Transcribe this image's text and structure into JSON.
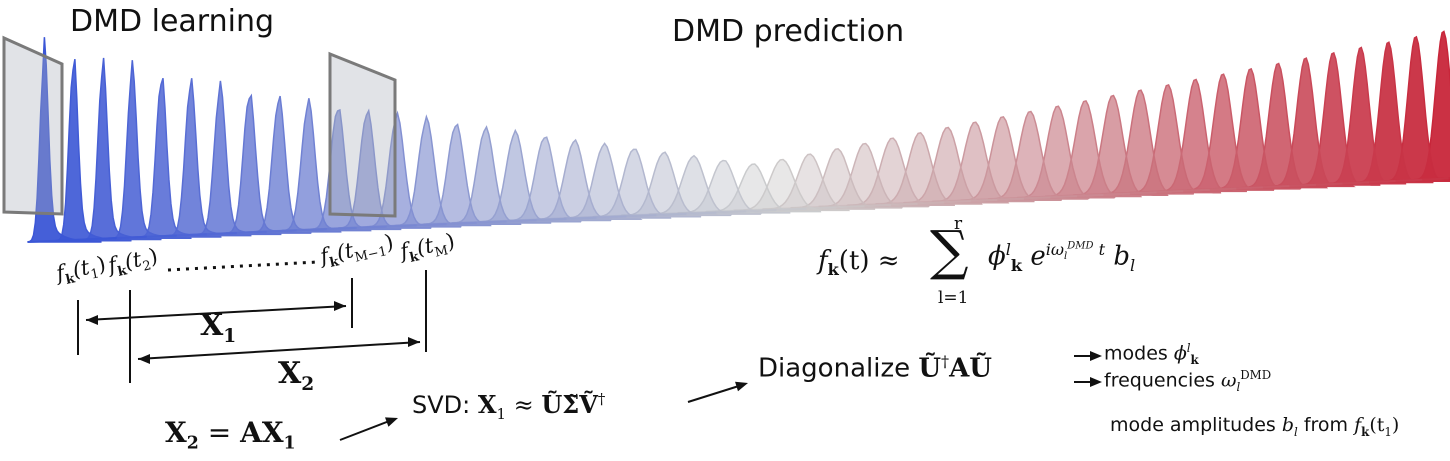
{
  "titles": {
    "learning": "DMD learning",
    "prediction": "DMD prediction"
  },
  "snapshots": {
    "t1": {
      "f": "f",
      "k": "k",
      "open": "(t",
      "sub": "1",
      "close": ")"
    },
    "t2": {
      "f": "f",
      "k": "k",
      "open": "(t",
      "sub": "2",
      "close": ")"
    },
    "tM1": {
      "f": "f",
      "k": "k",
      "open": "(t",
      "sub": "M−1",
      "close": ")"
    },
    "tM": {
      "f": "f",
      "k": "k",
      "open": "(t",
      "sub": "M",
      "close": ")"
    }
  },
  "matrices": {
    "x1_label": "X",
    "x1_sub": "1",
    "x2_label": "X",
    "x2_sub": "2"
  },
  "equations": {
    "relation_lhs": "X",
    "relation_lhs_sub": "2",
    "relation_eq": " = ",
    "relation_rhs": "AX",
    "relation_rhs_sub": "1",
    "svd_prefix": "SVD: ",
    "svd_x": "X",
    "svd_x_sub": "1",
    "svd_approx": " ≈ ",
    "svd_rhs": "ŨΣ̃Ṽ",
    "svd_dagger": "†",
    "diag_prefix": "Diagonalize ",
    "diag_u": "Ũ",
    "diag_dagger": "†",
    "diag_rest": "AŨ",
    "recon_lhs": "f",
    "recon_lhs_k": "k",
    "recon_lhs_t": "(t) ≈ ",
    "recon_sum": "∑",
    "recon_upper": "r",
    "recon_lower": "l=1",
    "recon_phi": "ϕ",
    "recon_phi_sup": "l",
    "recon_phi_sub": "k",
    "recon_e": " e",
    "recon_exp": "iω",
    "recon_exp_sub": "l",
    "recon_exp_sup": "DMD",
    "recon_exp_t": " t",
    "recon_b": " b",
    "recon_b_sub": "l"
  },
  "outputs": {
    "modes_text": "modes ",
    "modes_sym": "ϕ",
    "modes_sup": "l",
    "modes_sub": "k",
    "freq_text": "frequencies ",
    "freq_sym": "ω",
    "freq_sub": "l",
    "freq_sup": "DMD",
    "amp_text": "mode amplitudes ",
    "amp_sym": "b",
    "amp_sub": "l",
    "amp_from": " from ",
    "amp_f": "f",
    "amp_k": "k",
    "amp_open": "(t",
    "amp_t_sub": "1",
    "amp_close": ")"
  },
  "colors": {
    "learning_blue": "#3b56d6",
    "prediction_red": "#c8263a",
    "frame_gray": "#7a7a7a"
  }
}
